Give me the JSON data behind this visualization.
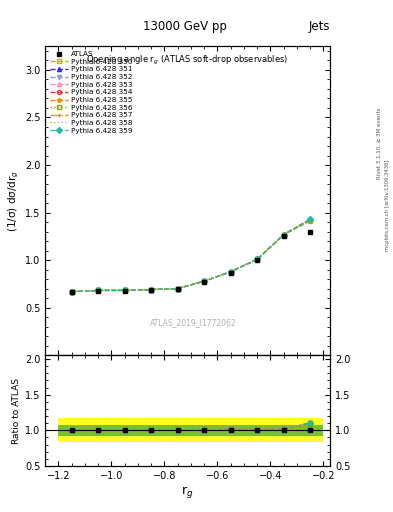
{
  "title_top": "13000 GeV pp",
  "title_right": "Jets",
  "plot_title": "Opening angle r$_g$ (ATLAS soft-drop observables)",
  "xlabel": "r$_g$",
  "ylabel_main": "(1/σ) dσ/dr$_g$",
  "ylabel_ratio": "Ratio to ATLAS",
  "watermark": "ATLAS_2019_I1772062",
  "rivet_label": "Rivet 3.1.10, ≥ 3M events",
  "arxiv_label": "mcplots.cern.ch [arXiv:1306.3436]",
  "x_data": [
    -1.15,
    -1.05,
    -0.95,
    -0.85,
    -0.75,
    -0.65,
    -0.55,
    -0.45,
    -0.35,
    -0.25
  ],
  "atlas_y": [
    0.665,
    0.68,
    0.68,
    0.69,
    0.7,
    0.775,
    0.87,
    1.0,
    1.255,
    1.295
  ],
  "pythia_series": [
    {
      "label": "Pythia 6.428 350",
      "color": "#bbbb00",
      "linestyle": "--",
      "marker": "s",
      "markerfill": "none",
      "y": [
        0.67,
        0.683,
        0.683,
        0.692,
        0.703,
        0.78,
        0.88,
        1.01,
        1.27,
        1.415
      ]
    },
    {
      "label": "Pythia 6.428 351",
      "color": "#3333dd",
      "linestyle": "--",
      "marker": "^",
      "markerfill": "full",
      "y": [
        0.672,
        0.683,
        0.683,
        0.692,
        0.703,
        0.78,
        0.88,
        1.01,
        1.27,
        1.43
      ]
    },
    {
      "label": "Pythia 6.428 352",
      "color": "#9999cc",
      "linestyle": "--",
      "marker": "v",
      "markerfill": "full",
      "y": [
        0.671,
        0.683,
        0.683,
        0.692,
        0.703,
        0.78,
        0.88,
        1.01,
        1.27,
        1.428
      ]
    },
    {
      "label": "Pythia 6.428 353",
      "color": "#ff88bb",
      "linestyle": "--",
      "marker": "^",
      "markerfill": "none",
      "y": [
        0.671,
        0.683,
        0.683,
        0.692,
        0.703,
        0.78,
        0.88,
        1.01,
        1.27,
        1.42
      ]
    },
    {
      "label": "Pythia 6.428 354",
      "color": "#dd3333",
      "linestyle": "--",
      "marker": "o",
      "markerfill": "none",
      "y": [
        0.671,
        0.683,
        0.683,
        0.692,
        0.703,
        0.78,
        0.88,
        1.01,
        1.27,
        1.418
      ]
    },
    {
      "label": "Pythia 6.428 355",
      "color": "#ff8800",
      "linestyle": "--",
      "marker": "*",
      "markerfill": "full",
      "y": [
        0.671,
        0.683,
        0.683,
        0.692,
        0.703,
        0.78,
        0.88,
        1.01,
        1.27,
        1.432
      ]
    },
    {
      "label": "Pythia 6.428 356",
      "color": "#88aa00",
      "linestyle": ":",
      "marker": "s",
      "markerfill": "none",
      "y": [
        0.671,
        0.683,
        0.683,
        0.692,
        0.703,
        0.78,
        0.88,
        1.01,
        1.27,
        1.42
      ]
    },
    {
      "label": "Pythia 6.428 357",
      "color": "#ccaa00",
      "linestyle": "-.",
      "marker": "+",
      "markerfill": "full",
      "y": [
        0.671,
        0.683,
        0.683,
        0.692,
        0.703,
        0.78,
        0.88,
        1.01,
        1.27,
        1.428
      ]
    },
    {
      "label": "Pythia 6.428 358",
      "color": "#aacc44",
      "linestyle": ":",
      "marker": "None",
      "markerfill": "none",
      "y": [
        0.671,
        0.683,
        0.683,
        0.692,
        0.703,
        0.78,
        0.88,
        1.01,
        1.27,
        1.424
      ]
    },
    {
      "label": "Pythia 6.428 359",
      "color": "#22bbaa",
      "linestyle": "--",
      "marker": "D",
      "markerfill": "full",
      "y": [
        0.671,
        0.683,
        0.683,
        0.692,
        0.703,
        0.78,
        0.88,
        1.01,
        1.27,
        1.432
      ]
    }
  ],
  "ratio_atlas_err_yellow": 0.17,
  "ratio_atlas_err_green": 0.08,
  "xlim": [
    -1.25,
    -0.175
  ],
  "ylim_main": [
    0.0,
    3.25
  ],
  "ylim_ratio": [
    0.5,
    2.05
  ],
  "yticks_main": [
    0.5,
    1.0,
    1.5,
    2.0,
    2.5,
    3.0
  ],
  "yticks_ratio": [
    0.5,
    1.0,
    1.5,
    2.0
  ],
  "xtick_major": [
    -1.2,
    -1.0,
    -0.8,
    -0.6,
    -0.4,
    -0.2
  ]
}
